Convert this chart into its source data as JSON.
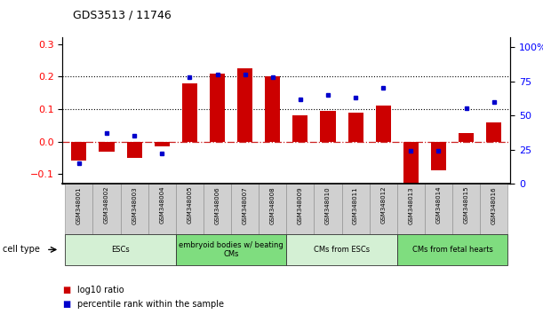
{
  "title": "GDS3513 / 11746",
  "samples": [
    "GSM348001",
    "GSM348002",
    "GSM348003",
    "GSM348004",
    "GSM348005",
    "GSM348006",
    "GSM348007",
    "GSM348008",
    "GSM348009",
    "GSM348010",
    "GSM348011",
    "GSM348012",
    "GSM348013",
    "GSM348014",
    "GSM348015",
    "GSM348016"
  ],
  "log10_ratio": [
    -0.06,
    -0.03,
    -0.05,
    -0.015,
    0.18,
    0.21,
    0.225,
    0.2,
    0.08,
    0.095,
    0.09,
    0.11,
    -0.13,
    -0.09,
    0.025,
    0.06
  ],
  "percentile_rank": [
    15,
    37,
    35,
    22,
    78,
    80,
    80,
    78,
    62,
    65,
    63,
    70,
    24,
    24,
    55,
    60
  ],
  "cell_type_groups": [
    {
      "label": "ESCs",
      "start": 0,
      "end": 3,
      "color": "#d4f0d4"
    },
    {
      "label": "embryoid bodies w/ beating\nCMs",
      "start": 4,
      "end": 7,
      "color": "#7fdd7f"
    },
    {
      "label": "CMs from ESCs",
      "start": 8,
      "end": 11,
      "color": "#d4f0d4"
    },
    {
      "label": "CMs from fetal hearts",
      "start": 12,
      "end": 15,
      "color": "#7fdd7f"
    }
  ],
  "bar_color": "#cc0000",
  "dot_color": "#0000cc",
  "ylim_left": [
    -0.13,
    0.32
  ],
  "ylim_right": [
    0,
    107
  ],
  "yticks_left": [
    -0.1,
    0.0,
    0.1,
    0.2,
    0.3
  ],
  "yticks_right": [
    0,
    25,
    50,
    75,
    100
  ],
  "hline_vals": [
    0.1,
    0.2
  ],
  "zero_line_color": "#cc2222",
  "legend_bar_label": "log10 ratio",
  "legend_dot_label": "percentile rank within the sample",
  "cell_type_label": "cell type"
}
